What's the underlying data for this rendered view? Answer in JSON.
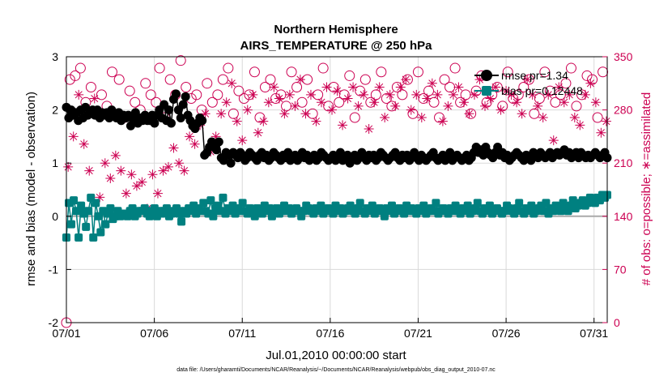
{
  "chart_data": {
    "type": "line",
    "title": "Northern Hemisphere",
    "subtitle": "AIRS_TEMPERATURE @ 250 hPa",
    "xlabel": "Jul.01,2010 00:00:00 start",
    "ylabel_left": "rmse and bias (model - observation)",
    "ylabel_right": "# of obs: o=possible; ∗=assimilated",
    "footnote": "data file: /Users/gharamti/Documents/NCAR/Reanalysis/~/Documents/NCAR/Reanalysis/webpub/obs_diag_output_2010-07.nc",
    "x_ticks": [
      {
        "label": "07/01",
        "day": 0
      },
      {
        "label": "07/06",
        "day": 5
      },
      {
        "label": "07/11",
        "day": 10
      },
      {
        "label": "07/16",
        "day": 15
      },
      {
        "label": "07/21",
        "day": 20
      },
      {
        "label": "07/26",
        "day": 25
      },
      {
        "label": "07/31",
        "day": 30
      }
    ],
    "xlim_days": [
      0,
      30.75
    ],
    "ylim_left": [
      -2,
      3
    ],
    "yticks_left": [
      "-2",
      "-1",
      "0",
      "1",
      "2",
      "3"
    ],
    "ylim_right": [
      0,
      350
    ],
    "yticks_right": [
      "0",
      "70",
      "140",
      "210",
      "280",
      "350"
    ],
    "grid": true,
    "legend_position": "top-right",
    "colors": {
      "rmse": "#000000",
      "bias": "#008080",
      "obs": "#cc0052",
      "zero_line": "#aaaaaa",
      "grid": "#d9d9d9"
    },
    "series": [
      {
        "name": "rmse pr=1.34",
        "axis": "left",
        "marker": "circle",
        "values": [
          2.05,
          1.85,
          2.0,
          1.9,
          1.95,
          1.8,
          2.0,
          1.85,
          2.05,
          1.9,
          1.95,
          2.0,
          1.9,
          2.0,
          1.85,
          1.95,
          1.9,
          1.95,
          1.85,
          2.0,
          1.9,
          1.85,
          1.95,
          1.8,
          1.9,
          1.85,
          1.9,
          1.7,
          1.85,
          1.95,
          1.75,
          1.85,
          1.8,
          1.9,
          1.8,
          1.8,
          1.9,
          1.75,
          1.9,
          2.0,
          1.85,
          2.1,
          1.8,
          2.0,
          1.75,
          2.2,
          2.3,
          2.0,
          1.85,
          2.1,
          2.25,
          1.9,
          1.8,
          1.7,
          1.65,
          1.75,
          1.85,
          1.8,
          1.15,
          1.2,
          1.3,
          1.4,
          1.35,
          1.25,
          1.4,
          1.1,
          1.05,
          1.2,
          1.15,
          1.0,
          1.2,
          1.15,
          1.1,
          1.2,
          1.15,
          1.05,
          1.1,
          1.2,
          1.15,
          1.1,
          1.05,
          1.15,
          1.2,
          1.1,
          1.15,
          1.05,
          1.1,
          1.2,
          1.15,
          1.1,
          1.05,
          1.15,
          1.1,
          1.2,
          1.05,
          1.1,
          1.15,
          1.05,
          1.1,
          1.2,
          1.1,
          1.15,
          1.05,
          1.1,
          1.15,
          1.05,
          1.1,
          1.2,
          1.15,
          1.1,
          1.05,
          1.1,
          1.15,
          1.05,
          1.1,
          1.2,
          1.05,
          1.1,
          1.15,
          1.0,
          1.1,
          1.15,
          1.05,
          1.1,
          1.2,
          1.1,
          1.05,
          1.15,
          1.1,
          1.15,
          1.05,
          1.1,
          1.2,
          1.15,
          1.1,
          1.05,
          1.1,
          1.15,
          1.2,
          1.1,
          1.05,
          1.15,
          1.1,
          1.15,
          1.05,
          1.1,
          1.2,
          1.1,
          1.05,
          1.15,
          1.1,
          1.05,
          1.1,
          1.15,
          1.2,
          1.1,
          1.05,
          1.1,
          1.15,
          1.05,
          1.1,
          1.2,
          1.05,
          1.1,
          1.15,
          1.1,
          1.05,
          1.1,
          1.15,
          1.05,
          1.1,
          1.2,
          1.3,
          1.2,
          1.25,
          1.15,
          1.3,
          1.2,
          1.15,
          1.1,
          1.2,
          1.3,
          1.15,
          1.2,
          1.1,
          1.15,
          1.05,
          1.1,
          1.15,
          1.2,
          1.15,
          1.1,
          1.05,
          1.15,
          1.1,
          1.05,
          1.2,
          1.15,
          1.1,
          1.2,
          1.15,
          1.1,
          1.15,
          1.2,
          1.1,
          1.15,
          1.2,
          1.15,
          1.2,
          1.25,
          1.15,
          1.2,
          1.1,
          1.15,
          1.2,
          1.1,
          1.2,
          1.15,
          1.1,
          1.15,
          1.1,
          1.15,
          1.2,
          1.15,
          1.1,
          1.15,
          1.2,
          1.1
        ]
      },
      {
        "name": "bias pr=0.12448",
        "axis": "left",
        "marker": "square",
        "values": [
          -0.4,
          0.25,
          -0.15,
          0.3,
          0.1,
          -0.4,
          0.2,
          0.05,
          -0.2,
          0.1,
          0.35,
          -0.4,
          0.25,
          0.0,
          -0.3,
          0.1,
          -0.15,
          0.05,
          0.15,
          -0.05,
          0.0,
          0.1,
          0.0,
          0.05,
          0.05,
          0.0,
          0.1,
          0.15,
          0.0,
          0.05,
          0.1,
          0.1,
          0.15,
          0.05,
          0.0,
          0.1,
          0.15,
          0.0,
          0.1,
          0.05,
          0.1,
          0.15,
          0.0,
          0.05,
          0.1,
          0.15,
          0.05,
          -0.1,
          0.1,
          0.05,
          0.15,
          0.1,
          0.2,
          0.05,
          0.15,
          0.1,
          0.25,
          0.1,
          0.05,
          0.3,
          0.0,
          0.15,
          0.2,
          0.1,
          0.35,
          0.05,
          0.15,
          0.1,
          0.2,
          0.05,
          0.15,
          0.1,
          0.25,
          0.1,
          0.05,
          0.15,
          0.1,
          0.0,
          0.15,
          0.1,
          0.05,
          0.2,
          0.1,
          0.15,
          0.0,
          0.1,
          0.15,
          0.05,
          0.1,
          0.2,
          0.1,
          0.15,
          0.05,
          0.1,
          0.15,
          0.1,
          0.0,
          0.1,
          0.2,
          0.15,
          0.1,
          0.05,
          0.15,
          0.1,
          0.2,
          0.05,
          0.1,
          0.15,
          0.1,
          0.05,
          0.2,
          0.1,
          0.15,
          0.05,
          0.1,
          0.15,
          0.2,
          0.1,
          0.05,
          0.15,
          0.25,
          0.1,
          0.05,
          0.15,
          0.1,
          0.2,
          0.05,
          0.1,
          0.15,
          0.1,
          0.0,
          0.15,
          0.1,
          0.2,
          0.05,
          0.1,
          0.15,
          0.1,
          0.05,
          0.2,
          0.1,
          0.15,
          0.1,
          0.05,
          0.15,
          0.1,
          0.2,
          0.05,
          0.1,
          0.15,
          0.1,
          0.25,
          0.05,
          0.1,
          0.15,
          0.1,
          0.05,
          0.15,
          0.1,
          0.2,
          0.1,
          0.05,
          0.15,
          0.1,
          0.2,
          0.05,
          0.1,
          0.15,
          0.25,
          0.1,
          0.05,
          0.15,
          0.1,
          0.2,
          0.05,
          0.1,
          0.15,
          0.1,
          0.05,
          0.1,
          0.2,
          0.15,
          0.1,
          0.05,
          0.15,
          0.25,
          0.1,
          0.05,
          0.15,
          0.1,
          0.2,
          0.05,
          0.1,
          0.15,
          0.2,
          0.1,
          0.25,
          0.05,
          0.15,
          0.1,
          0.2,
          0.15,
          0.1,
          0.25,
          0.15,
          0.1,
          0.2,
          0.3,
          0.15,
          0.2,
          0.25,
          0.3,
          0.2,
          0.25,
          0.35,
          0.3,
          0.25,
          0.35,
          0.3,
          0.4,
          0.35,
          0.4
        ]
      },
      {
        "name": "possible",
        "axis": "right",
        "marker": "open-circle",
        "x_days": [
          0.0,
          0.2,
          0.5,
          0.8,
          1.1,
          1.4,
          1.7,
          2.0,
          2.3,
          2.6,
          3.0,
          3.3,
          3.6,
          3.9,
          4.2,
          4.5,
          4.8,
          5.1,
          5.3,
          5.6,
          5.9,
          6.2,
          6.5,
          6.8,
          7.1,
          7.4,
          7.7,
          8.0,
          8.3,
          8.6,
          8.9,
          9.2,
          9.5,
          9.8,
          10.1,
          10.4,
          10.7,
          11.0,
          11.3,
          11.6,
          11.9,
          12.2,
          12.5,
          12.8,
          13.1,
          13.4,
          13.7,
          14.0,
          14.3,
          14.6,
          14.9,
          15.2,
          15.5,
          15.8,
          16.1,
          16.4,
          16.7,
          17.0,
          17.3,
          17.6,
          17.9,
          18.2,
          18.5,
          18.8,
          19.1,
          19.4,
          19.7,
          20.0,
          20.3,
          20.6,
          20.9,
          21.2,
          21.5,
          21.8,
          22.1,
          22.4,
          22.7,
          23.0,
          23.3,
          23.6,
          23.9,
          24.2,
          24.5,
          24.8,
          25.1,
          25.4,
          25.7,
          26.0,
          26.3,
          26.6,
          26.9,
          27.2,
          27.5,
          27.8,
          28.1,
          28.4,
          28.7,
          29.0,
          29.3,
          29.6,
          29.9,
          30.2,
          30.5
        ],
        "values": [
          0,
          320,
          325,
          335,
          290,
          310,
          275,
          300,
          285,
          330,
          320,
          270,
          305,
          290,
          280,
          315,
          300,
          290,
          335,
          270,
          320,
          300,
          345,
          310,
          295,
          300,
          280,
          315,
          290,
          300,
          320,
          335,
          275,
          305,
          295,
          300,
          330,
          270,
          310,
          320,
          295,
          300,
          285,
          330,
          310,
          290,
          320,
          275,
          300,
          335,
          285,
          310,
          290,
          300,
          325,
          270,
          305,
          320,
          290,
          300,
          330,
          295,
          285,
          310,
          300,
          320,
          275,
          330,
          295,
          305,
          290,
          270,
          320,
          310,
          335,
          290,
          300,
          275,
          305,
          325,
          290,
          300,
          310,
          285,
          330,
          295,
          300,
          310,
          320,
          275,
          295,
          330,
          305,
          290,
          300,
          315,
          335,
          285,
          300,
          325,
          320,
          270,
          330
        ]
      },
      {
        "name": "assimilated",
        "axis": "right",
        "marker": "asterisk",
        "x_days": [
          0.1,
          0.4,
          0.7,
          1.0,
          1.3,
          1.6,
          1.9,
          2.2,
          2.5,
          2.8,
          3.1,
          3.4,
          3.7,
          4.0,
          4.3,
          4.6,
          4.9,
          5.2,
          5.5,
          5.8,
          6.1,
          6.4,
          6.7,
          7.0,
          7.3,
          7.6,
          7.9,
          8.2,
          8.5,
          8.8,
          9.1,
          9.4,
          9.7,
          10.0,
          10.3,
          10.6,
          10.9,
          11.2,
          11.5,
          11.8,
          12.1,
          12.4,
          12.7,
          13.0,
          13.3,
          13.6,
          13.9,
          14.2,
          14.5,
          14.8,
          15.1,
          15.4,
          15.7,
          16.0,
          16.3,
          16.6,
          16.9,
          17.2,
          17.5,
          17.8,
          18.1,
          18.4,
          18.7,
          19.0,
          19.3,
          19.6,
          19.9,
          20.2,
          20.5,
          20.8,
          21.1,
          21.4,
          21.7,
          22.0,
          22.3,
          22.6,
          22.9,
          23.2,
          23.5,
          23.8,
          24.1,
          24.4,
          24.7,
          25.0,
          25.3,
          25.6,
          25.9,
          26.2,
          26.5,
          26.8,
          27.1,
          27.4,
          27.7,
          28.0,
          28.3,
          28.6,
          28.9,
          29.2,
          29.5,
          29.8,
          30.1,
          30.4,
          30.7
        ],
        "values": [
          205,
          245,
          300,
          235,
          200,
          295,
          165,
          210,
          190,
          220,
          200,
          170,
          195,
          180,
          185,
          150,
          195,
          170,
          200,
          205,
          230,
          210,
          200,
          245,
          235,
          260,
          275,
          225,
          245,
          275,
          290,
          315,
          265,
          240,
          280,
          300,
          250,
          265,
          290,
          310,
          295,
          275,
          300,
          285,
          320,
          275,
          300,
          265,
          290,
          310,
          280,
          305,
          260,
          295,
          310,
          285,
          300,
          255,
          290,
          310,
          270,
          300,
          285,
          310,
          320,
          280,
          300,
          270,
          295,
          315,
          300,
          265,
          285,
          300,
          310,
          290,
          275,
          300,
          320,
          285,
          295,
          310,
          280,
          305,
          300,
          290,
          275,
          320,
          300,
          285,
          270,
          300,
          240,
          310,
          290,
          300,
          270,
          260,
          300,
          315,
          290,
          250,
          265
        ]
      }
    ]
  }
}
